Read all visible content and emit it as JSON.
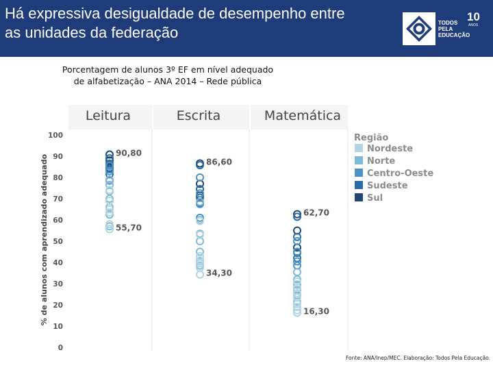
{
  "header": {
    "title_line1": "Há expressiva desigualdade de desempenho entre",
    "title_line2": "as unidades da federação"
  },
  "logo": {
    "icon": "todos-pela-educacao-logo-icon",
    "line1": "TODOS",
    "line2": "PELA",
    "line3": "EDUCAÇÃO",
    "anniversary": "10",
    "anniversary_unit": "ANOS"
  },
  "subtitle": {
    "line1": "Porcentagem de alunos 3º EF em nível adequado",
    "line2": "de alfabetização – ANA 2014 – Rede pública"
  },
  "chart_data": {
    "type": "scatter",
    "panels": [
      "Leitura",
      "Escrita",
      "Matemática"
    ],
    "ylabel": "% de alunos com aprendizado adequado",
    "ylim": [
      0,
      100
    ],
    "yticks": [
      0,
      10,
      20,
      30,
      40,
      50,
      60,
      70,
      80,
      90,
      100
    ],
    "grid": false,
    "legend": {
      "title": "Região",
      "position": "right",
      "entries": [
        {
          "name": "Nordeste",
          "color": "#b3d4e3"
        },
        {
          "name": "Norte",
          "color": "#7fb9d8"
        },
        {
          "name": "Centro-Oeste",
          "color": "#4a93c4"
        },
        {
          "name": "Sudeste",
          "color": "#2a6aa5"
        },
        {
          "name": "Sul",
          "color": "#23466f"
        }
      ]
    },
    "annotations": [
      {
        "panel": "Leitura",
        "label": "90,80",
        "value": 90.8
      },
      {
        "panel": "Leitura",
        "label": "55,70",
        "value": 55.7
      },
      {
        "panel": "Escrita",
        "label": "86,60",
        "value": 86.6
      },
      {
        "panel": "Escrita",
        "label": "34,30",
        "value": 34.3
      },
      {
        "panel": "Matemática",
        "label": "62,70",
        "value": 62.7
      },
      {
        "panel": "Matemática",
        "label": "16,30",
        "value": 16.3
      }
    ],
    "series": [
      {
        "name": "Sul",
        "color": "#23466f",
        "values": {
          "Leitura": [
            90.8,
            88.0,
            84.5
          ],
          "Escrita": [
            86.6,
            77.0,
            71.5
          ],
          "Matemática": [
            62.7,
            55.0,
            47.0
          ]
        }
      },
      {
        "name": "Sudeste",
        "color": "#2a6aa5",
        "values": {
          "Leitura": [
            89.0,
            86.5,
            84.0,
            81.5
          ],
          "Escrita": [
            85.8,
            74.5,
            70.5,
            68.0
          ],
          "Matemática": [
            61.5,
            52.0,
            44.5,
            42.0
          ]
        }
      },
      {
        "name": "Centro-Oeste",
        "color": "#4a93c4",
        "values": {
          "Leitura": [
            85.5,
            83.0,
            78.5
          ],
          "Escrita": [
            80.0,
            72.5,
            67.5,
            61.0
          ],
          "Matemática": [
            50.0,
            45.0,
            40.5,
            38.5
          ]
        }
      },
      {
        "name": "Norte",
        "color": "#7fb9d8",
        "values": {
          "Leitura": [
            79.0,
            76.5,
            73.5,
            70.0,
            66.0,
            62.5,
            57.0
          ],
          "Escrita": [
            68.5,
            60.0,
            53.5,
            50.0,
            45.0,
            40.5,
            38.5
          ],
          "Matemática": [
            35.5,
            32.0,
            29.5,
            27.0,
            24.5,
            21.5
          ]
        }
      },
      {
        "name": "Nordeste",
        "color": "#b3d4e3",
        "values": {
          "Leitura": [
            74.0,
            69.0,
            65.0,
            63.5,
            58.0,
            55.7
          ],
          "Escrita": [
            59.5,
            53.0,
            43.0,
            41.0,
            39.5,
            37.5,
            34.3
          ],
          "Matemática": [
            31.0,
            28.0,
            25.5,
            23.5,
            20.5,
            19.0,
            17.5,
            16.3
          ]
        }
      }
    ]
  },
  "source": "Fonte: ANA/Inep/MEC. Elaboração: Todos Pela Educação."
}
